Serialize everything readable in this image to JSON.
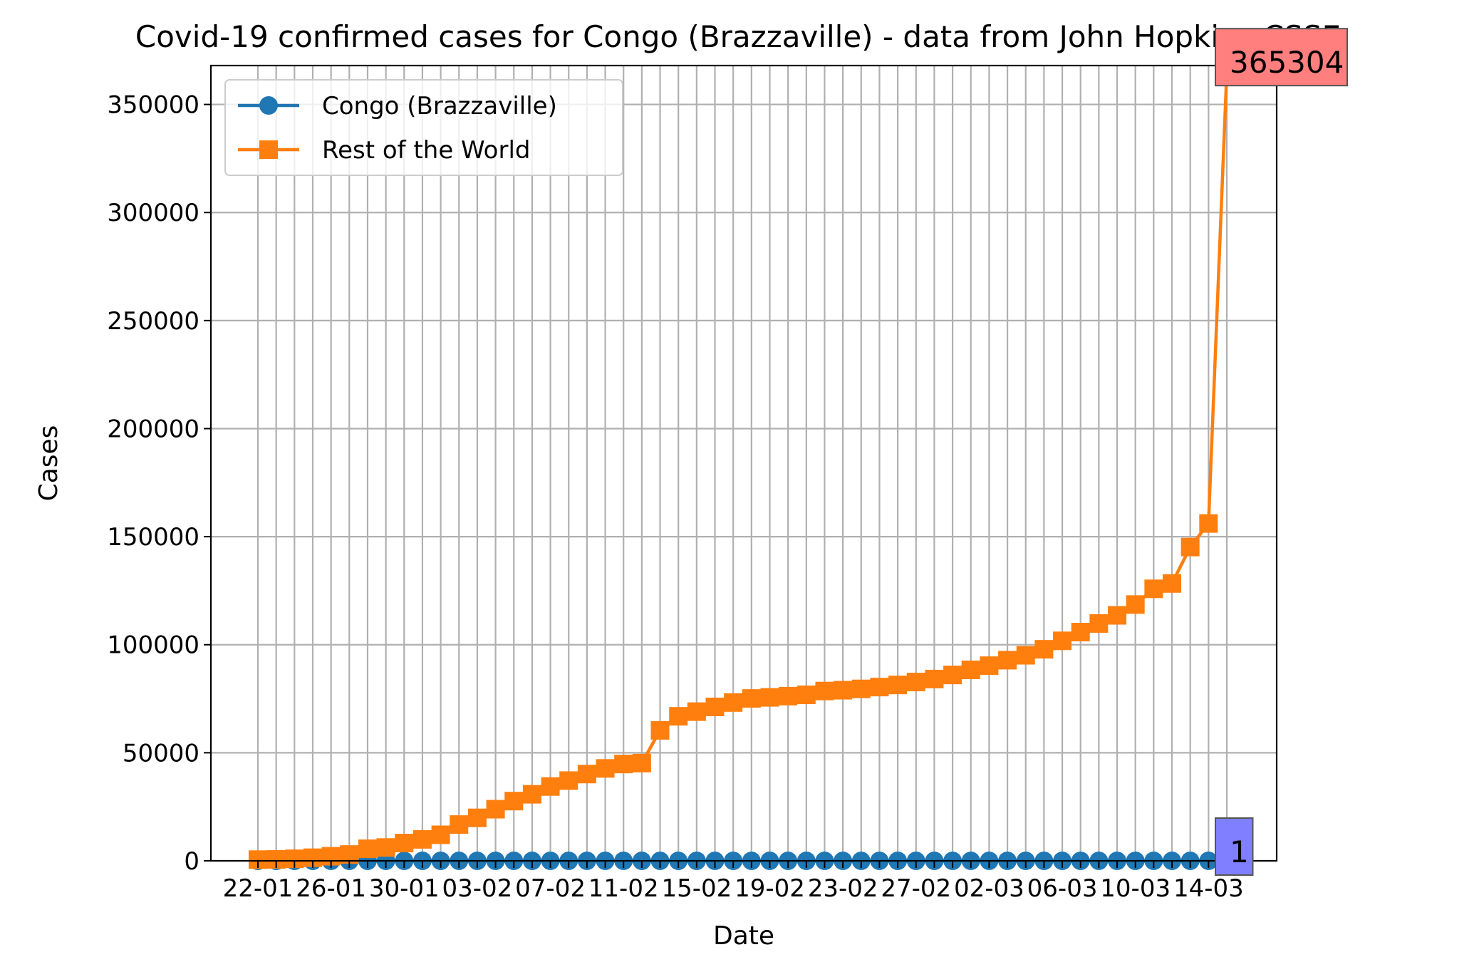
{
  "chart_data": {
    "type": "line",
    "title": "Covid-19 confirmed cases for Congo (Brazzaville) - data from John Hopkins CSSE",
    "xlabel": "Date",
    "ylabel": "Cases",
    "ylim": [
      0,
      368000
    ],
    "yticks": [
      0,
      50000,
      100000,
      150000,
      200000,
      250000,
      300000,
      350000
    ],
    "ytick_labels": [
      "0",
      "50000",
      "100000",
      "150000",
      "200000",
      "250000",
      "300000",
      "350000"
    ],
    "xtick_labels": [
      "22-01",
      "26-01",
      "30-01",
      "03-02",
      "07-02",
      "11-02",
      "15-02",
      "19-02",
      "23-02",
      "27-02",
      "02-03",
      "06-03",
      "10-03",
      "14-03"
    ],
    "grid": true,
    "legend_position": "upper-left",
    "categories": [
      "22-01",
      "23-01",
      "24-01",
      "25-01",
      "26-01",
      "27-01",
      "28-01",
      "29-01",
      "30-01",
      "31-01",
      "01-02",
      "02-02",
      "03-02",
      "04-02",
      "05-02",
      "06-02",
      "07-02",
      "08-02",
      "09-02",
      "10-02",
      "11-02",
      "12-02",
      "13-02",
      "14-02",
      "15-02",
      "16-02",
      "17-02",
      "18-02",
      "19-02",
      "20-02",
      "21-02",
      "22-02",
      "23-02",
      "24-02",
      "25-02",
      "26-02",
      "27-02",
      "28-02",
      "29-02",
      "01-03",
      "02-03",
      "03-03",
      "04-03",
      "05-03",
      "06-03",
      "07-03",
      "08-03",
      "09-03",
      "10-03",
      "11-03",
      "12-03",
      "13-03",
      "14-03",
      "15-03"
    ],
    "series": [
      {
        "name": "Congo (Brazzaville)",
        "color": "#1f77b4",
        "marker": "circle",
        "values": [
          0,
          0,
          0,
          0,
          0,
          0,
          0,
          0,
          0,
          0,
          0,
          0,
          0,
          0,
          0,
          0,
          0,
          0,
          0,
          0,
          0,
          0,
          0,
          0,
          0,
          0,
          0,
          0,
          0,
          0,
          0,
          0,
          0,
          0,
          0,
          0,
          0,
          0,
          0,
          0,
          0,
          0,
          0,
          0,
          0,
          0,
          0,
          0,
          0,
          0,
          0,
          0,
          0,
          1
        ]
      },
      {
        "name": "Rest of the World",
        "color": "#ff7f0e",
        "marker": "square",
        "values": [
          555,
          654,
          941,
          1434,
          2118,
          2927,
          5578,
          6166,
          8234,
          9927,
          12038,
          16787,
          19881,
          23892,
          27635,
          30794,
          34391,
          37120,
          40150,
          42762,
          44802,
          45221,
          60368,
          66885,
          69030,
          71224,
          73258,
          75136,
          75639,
          76197,
          76819,
          78572,
          78958,
          79561,
          80406,
          81388,
          82746,
          84112,
          86011,
          88369,
          90306,
          92840,
          95120,
          97886,
          101801,
          105847,
          109821,
          113590,
          118592,
          125865,
          128343,
          145193,
          156097,
          365304
        ]
      }
    ],
    "annotations": [
      {
        "text": "365304",
        "series": "Rest of the World",
        "box_color": "#ff7f7f"
      },
      {
        "text": "1",
        "series": "Congo (Brazzaville)",
        "box_color": "#7f7fff"
      }
    ]
  }
}
